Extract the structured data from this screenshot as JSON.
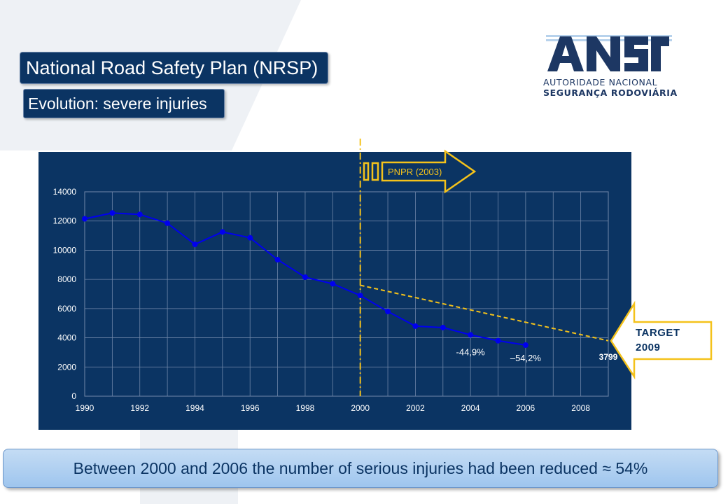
{
  "header": {
    "title": "National Road Safety Plan (NRSP)",
    "subtitle": "Evolution: severe injuries"
  },
  "logo": {
    "wordmark": "ansr",
    "line1": "AUTORIDADE NACIONAL",
    "line2": "SEGURANÇA RODOVIÁRIA",
    "color": "#1d3763",
    "accent": "#b7d2ec"
  },
  "chart_data": {
    "type": "line",
    "x": [
      1990,
      1991,
      1992,
      1993,
      1994,
      1995,
      1996,
      1997,
      1998,
      1999,
      2000,
      2001,
      2002,
      2003,
      2004,
      2005,
      2006
    ],
    "series": [
      {
        "name": "",
        "values": [
          12150,
          12550,
          12450,
          11850,
          10400,
          11250,
          10850,
          9350,
          8150,
          7700,
          6900,
          5800,
          4800,
          4700,
          4200,
          3800,
          3500
        ],
        "color": "#0000ee"
      }
    ],
    "target_line": {
      "from": [
        2000,
        7600
      ],
      "to": [
        2009,
        3799
      ],
      "color": "#f4c21b",
      "style": "dashed"
    },
    "vertical_marker": {
      "x": 2000,
      "color": "#f4c21b",
      "style": "dash-dot"
    },
    "xlim": [
      1990,
      2009
    ],
    "ylim": [
      0,
      14000
    ],
    "x_ticks": [
      1990,
      1992,
      1994,
      1996,
      1998,
      2000,
      2002,
      2004,
      2006,
      2008
    ],
    "y_ticks": [
      0,
      2000,
      4000,
      6000,
      8000,
      10000,
      12000,
      14000
    ],
    "grid": true,
    "annotations": [
      {
        "text": "-44,9%",
        "x": 2004,
        "y": 2800
      },
      {
        "text": "–54,2%",
        "x": 2006,
        "y": 2400
      },
      {
        "text": "3799",
        "x": 2009,
        "y": 2500
      }
    ],
    "plan_arrow_label": "PNPR (2003)",
    "target_label_line1": "TARGET",
    "target_label_line2": "2009"
  },
  "footer": {
    "text": "Between 2000 and 2006 the number of serious injuries had been reduced ≈ 54%"
  }
}
